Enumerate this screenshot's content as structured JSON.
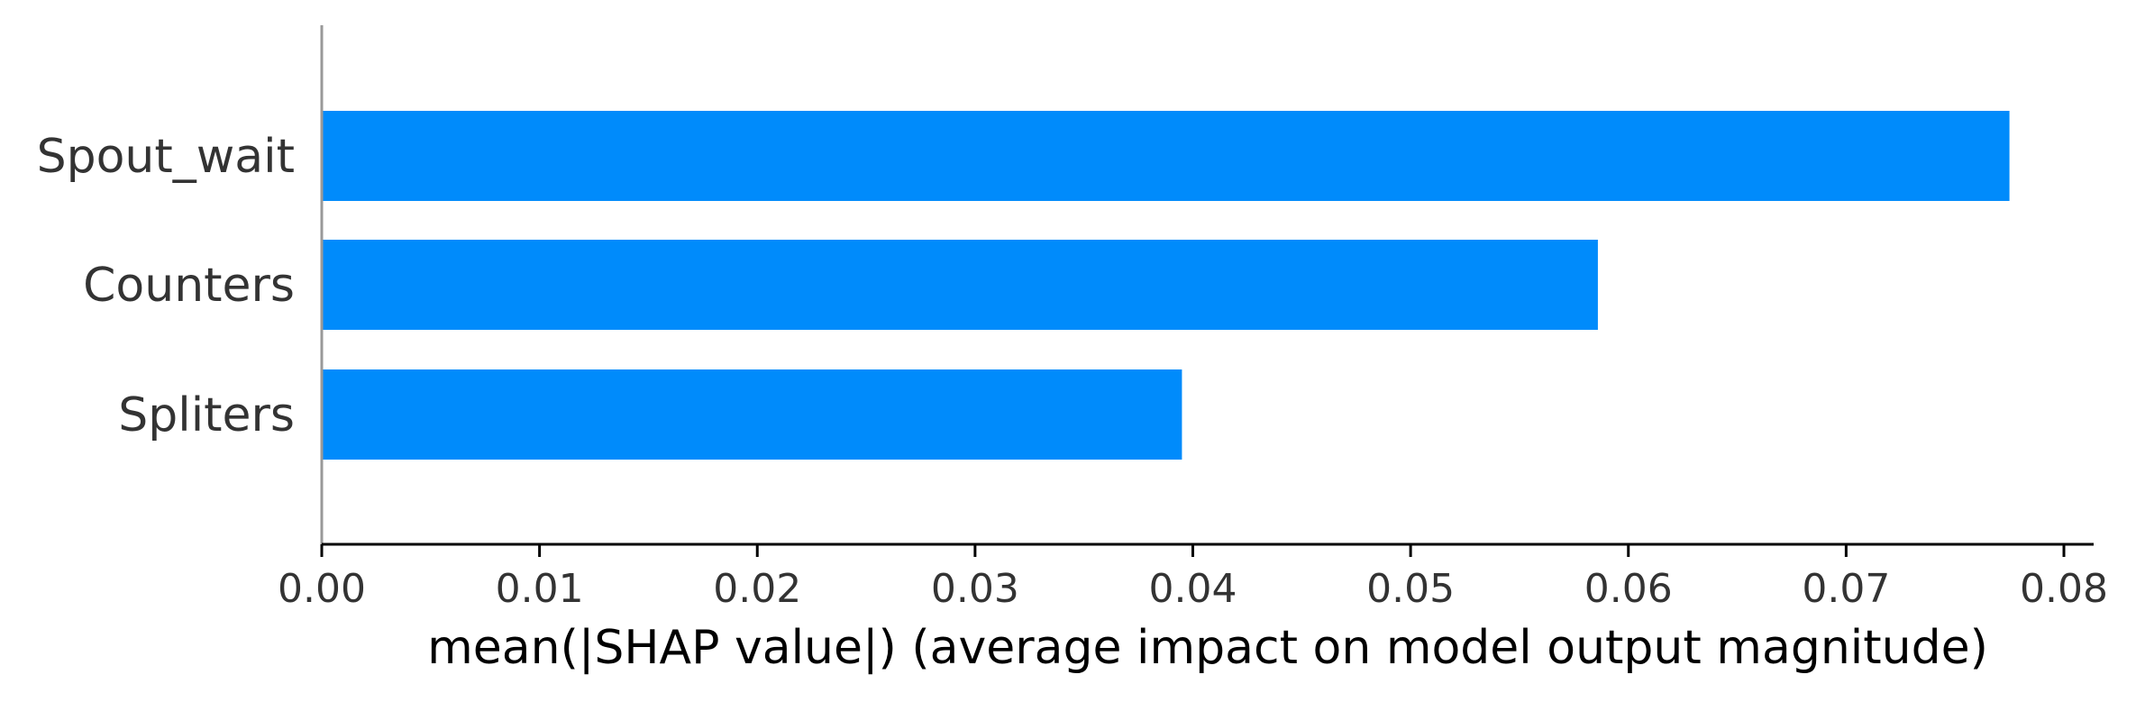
{
  "chart_data": {
    "type": "bar",
    "orientation": "horizontal",
    "categories": [
      "Spout_wait",
      "Counters",
      "Spliters"
    ],
    "values": [
      0.0775,
      0.0586,
      0.0395
    ],
    "xlabel": "mean(|SHAP value|) (average impact on model output magnitude)",
    "ylabel": "",
    "xlim": [
      0,
      0.08
    ],
    "xticks": [
      0,
      0.01,
      0.02,
      0.03,
      0.04,
      0.05,
      0.06,
      0.07,
      0.08
    ],
    "xtick_labels": [
      "0.00",
      "0.01",
      "0.02",
      "0.03",
      "0.04",
      "0.05",
      "0.06",
      "0.07",
      "0.08"
    ],
    "bar_color": "#008bfb",
    "grid": false
  }
}
